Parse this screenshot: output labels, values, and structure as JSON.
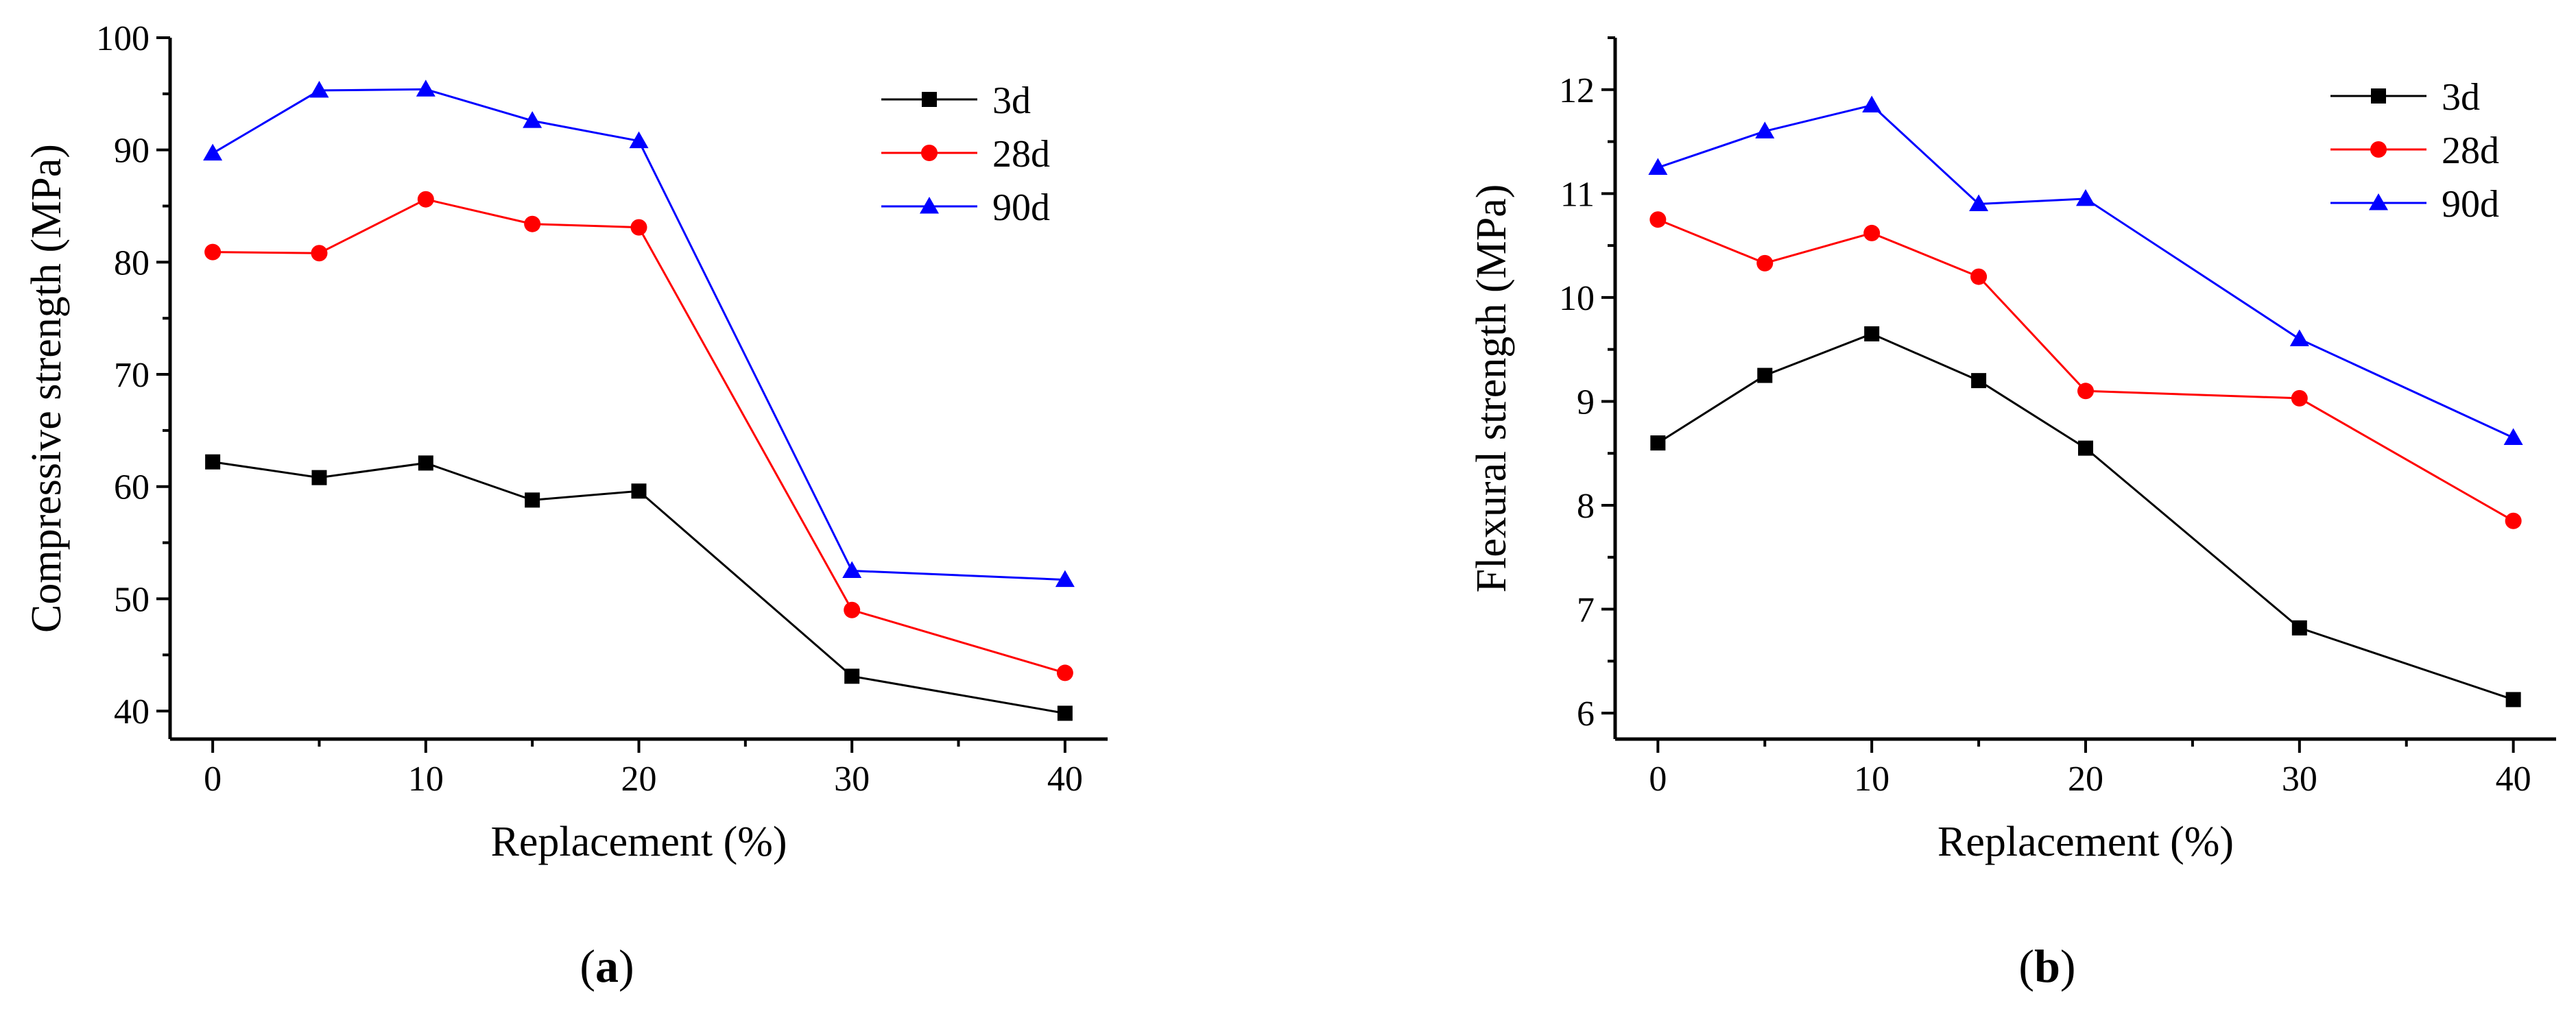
{
  "chart_data": [
    {
      "type": "line",
      "panel": "a",
      "caption_letter": "a",
      "xlabel": "Replacement (%)",
      "ylabel": "Compressive strength (MPa)",
      "x": [
        0,
        5,
        10,
        15,
        20,
        30,
        40
      ],
      "xlim": [
        -2,
        42
      ],
      "ylim": [
        37.5,
        100
      ],
      "xticks": [
        0,
        10,
        20,
        30,
        40
      ],
      "xticks_minor": [
        5,
        15,
        25,
        35
      ],
      "yticks": [
        40,
        50,
        60,
        70,
        80,
        90,
        100
      ],
      "yticks_minor": [
        45,
        55,
        65,
        75,
        85,
        95
      ],
      "grid": false,
      "legend_position": "top-right",
      "series": [
        {
          "name": "3d",
          "color": "#000000",
          "marker": "square",
          "values": [
            62.2,
            60.8,
            62.1,
            58.8,
            59.6,
            43.1,
            39.8
          ]
        },
        {
          "name": "28d",
          "color": "#ff0000",
          "marker": "circle",
          "values": [
            80.9,
            80.8,
            85.6,
            83.4,
            83.1,
            49.0,
            43.4
          ]
        },
        {
          "name": "90d",
          "color": "#0000ff",
          "marker": "triangle",
          "values": [
            89.7,
            95.3,
            95.4,
            92.6,
            90.8,
            52.5,
            51.7
          ]
        }
      ]
    },
    {
      "type": "line",
      "panel": "b",
      "caption_letter": "b",
      "xlabel": "Replacement (%)",
      "ylabel": "Flexural strength (MPa)",
      "x": [
        0,
        5,
        10,
        15,
        20,
        30,
        40
      ],
      "xlim": [
        -2,
        42
      ],
      "ylim": [
        5.75,
        12.5
      ],
      "xticks": [
        0,
        10,
        20,
        30,
        40
      ],
      "xticks_minor": [
        5,
        15,
        25,
        35
      ],
      "yticks": [
        6,
        7,
        8,
        9,
        10,
        11,
        12
      ],
      "yticks_minor": [
        6.5,
        7.5,
        8.5,
        9.5,
        10.5,
        11.5,
        12.5
      ],
      "grid": false,
      "legend_position": "top-right",
      "series": [
        {
          "name": "3d",
          "color": "#000000",
          "marker": "square",
          "values": [
            8.6,
            9.25,
            9.65,
            9.2,
            8.55,
            6.82,
            6.13
          ]
        },
        {
          "name": "28d",
          "color": "#ff0000",
          "marker": "circle",
          "values": [
            10.75,
            10.33,
            10.62,
            10.2,
            9.1,
            9.03,
            7.85
          ]
        },
        {
          "name": "90d",
          "color": "#0000ff",
          "marker": "triangle",
          "values": [
            11.25,
            11.6,
            11.85,
            10.9,
            10.95,
            9.6,
            8.65
          ]
        }
      ]
    }
  ]
}
